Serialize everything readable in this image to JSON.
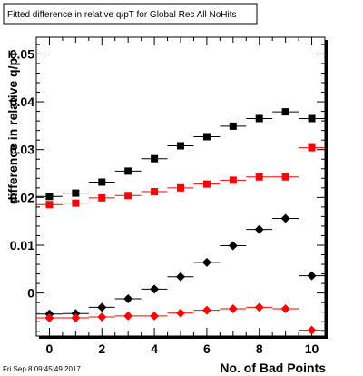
{
  "title": "Fitted difference in relative q/pT for Global Rec All NoHits",
  "timestamp": "Fri Sep  8 09:45:49 2017",
  "chart_data": {
    "type": "scatter",
    "title": "Fitted difference in relative q/pT for Global Rec All NoHits",
    "xlabel": "No. of Bad Points",
    "ylabel": "difference in relative q/pT",
    "xlim": [
      -0.5,
      10.5
    ],
    "ylim": [
      -0.009,
      0.0535
    ],
    "x_ticks": [
      "0",
      "2",
      "4",
      "6",
      "8",
      "10"
    ],
    "y_ticks": [
      "0",
      "0.01",
      "0.02",
      "0.03",
      "0.04",
      "0.05"
    ],
    "grid": false,
    "legend": "none",
    "x": [
      0,
      1,
      2,
      3,
      4,
      5,
      6,
      7,
      8,
      9,
      10
    ],
    "series": [
      {
        "marker": "square",
        "color": "#000000",
        "values": [
          0.0202,
          0.0209,
          0.0232,
          0.0255,
          0.0281,
          0.0308,
          0.0327,
          0.0349,
          0.0365,
          0.0379,
          0.0365
        ]
      },
      {
        "marker": "square",
        "color": "#ff0000",
        "values": [
          0.0185,
          0.0188,
          0.0199,
          0.0204,
          0.0212,
          0.022,
          0.0228,
          0.0236,
          0.0243,
          0.0243,
          0.0304
        ]
      },
      {
        "marker": "diamond",
        "color": "#000000",
        "values": [
          -0.0044,
          -0.0043,
          -0.003,
          -0.0012,
          0.0008,
          0.0034,
          0.0064,
          0.0099,
          0.0133,
          0.0156,
          0.0036
        ]
      },
      {
        "marker": "diamond",
        "color": "#ff0000",
        "values": [
          -0.0052,
          -0.0052,
          -0.005,
          -0.0048,
          -0.0048,
          -0.0042,
          -0.0036,
          -0.0033,
          -0.003,
          -0.0033,
          -0.0078
        ]
      }
    ]
  }
}
